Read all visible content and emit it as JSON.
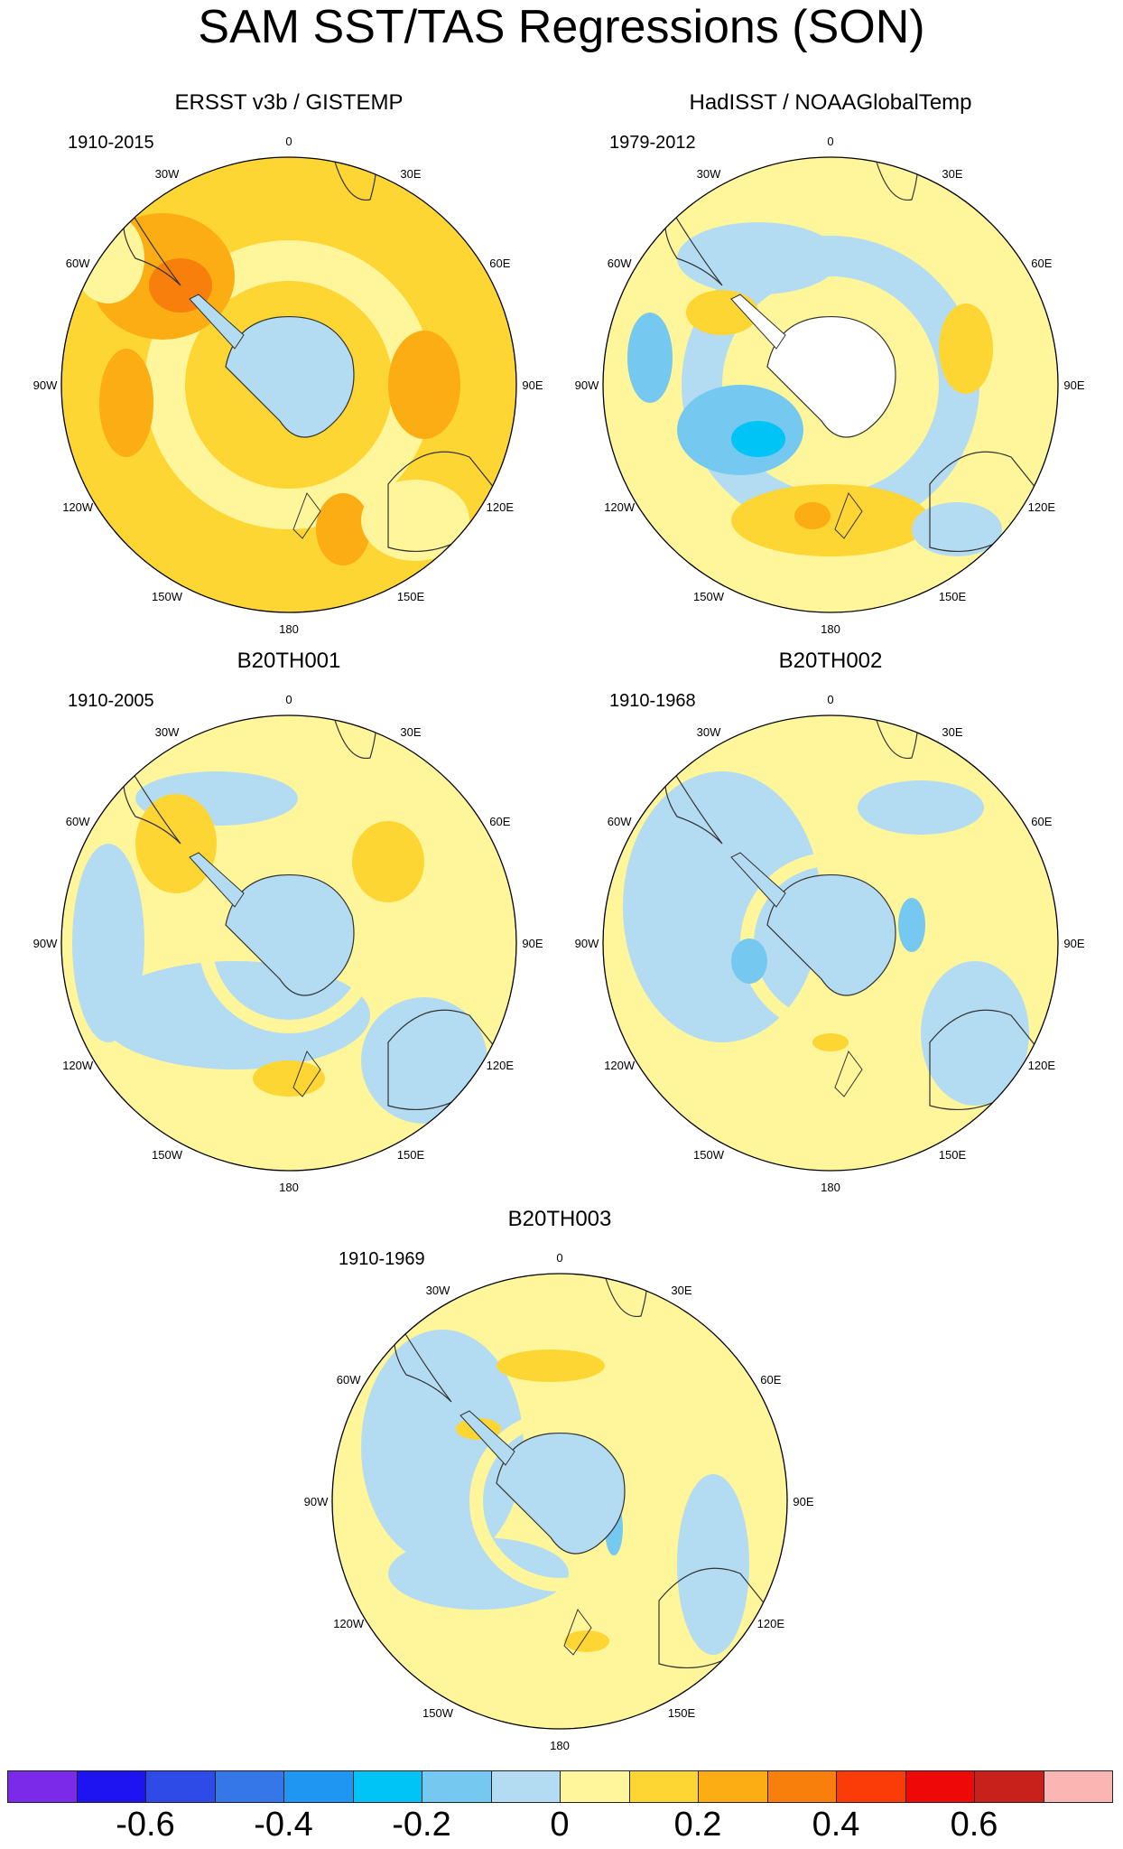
{
  "title": "SAM SST/TAS Regressions (SON)",
  "colors": {
    "land": "#ffffff",
    "n06": "#7a2ae8",
    "n05": "#1e14f2",
    "n04": "#2e4be8",
    "n03": "#3577e8",
    "n02": "#1e96f2",
    "n01": "#00c4f5",
    "n00": "#75c8f0",
    "z_neg": "#b3dcf2",
    "z_pos": "#fff59a",
    "p01": "#fdd634",
    "p02": "#fbad13",
    "p03": "#f97f0c",
    "p04": "#fb3c08",
    "p05": "#ee0808",
    "p06": "#c8201a",
    "p07": "#fbb6b4"
  },
  "map": {
    "type": "polar-stereographic",
    "hemisphere": "south",
    "longitude_labels": [
      "0",
      "30E",
      "60E",
      "90E",
      "120E",
      "150E",
      "180",
      "150W",
      "120W",
      "90W",
      "60W",
      "30W"
    ]
  },
  "panels": [
    {
      "id": "ersst",
      "title": "ERSST v3b / GISTEMP",
      "period": "1910-2015",
      "background": "p01",
      "antarctica": "z_neg"
    },
    {
      "id": "hadisst",
      "title": "HadISST / NOAAGlobalTemp",
      "period": "1979-2012",
      "background": "z_pos",
      "antarctica": "land"
    },
    {
      "id": "b20th001",
      "title": "B20TH001",
      "period": "1910-2005",
      "background": "z_pos",
      "antarctica": "z_neg"
    },
    {
      "id": "b20th002",
      "title": "B20TH002",
      "period": "1910-1968",
      "background": "z_pos",
      "antarctica": "z_neg"
    },
    {
      "id": "b20th003",
      "title": "B20TH003",
      "period": "1910-1969",
      "background": "z_pos",
      "antarctica": "z_neg"
    }
  ],
  "colorbar": {
    "boxes": [
      "n06",
      "n05",
      "n04",
      "n03",
      "n02",
      "n01",
      "n00",
      "z_neg",
      "z_pos",
      "p01",
      "p02",
      "p03",
      "p04",
      "p05",
      "p06",
      "p07"
    ],
    "tick_values": [
      -0.6,
      -0.4,
      -0.2,
      0,
      0.2,
      0.4,
      0.6
    ],
    "labels": [
      "-0.6",
      "-0.4",
      "-0.2",
      "0",
      "0.2",
      "0.4",
      "0.6"
    ]
  }
}
